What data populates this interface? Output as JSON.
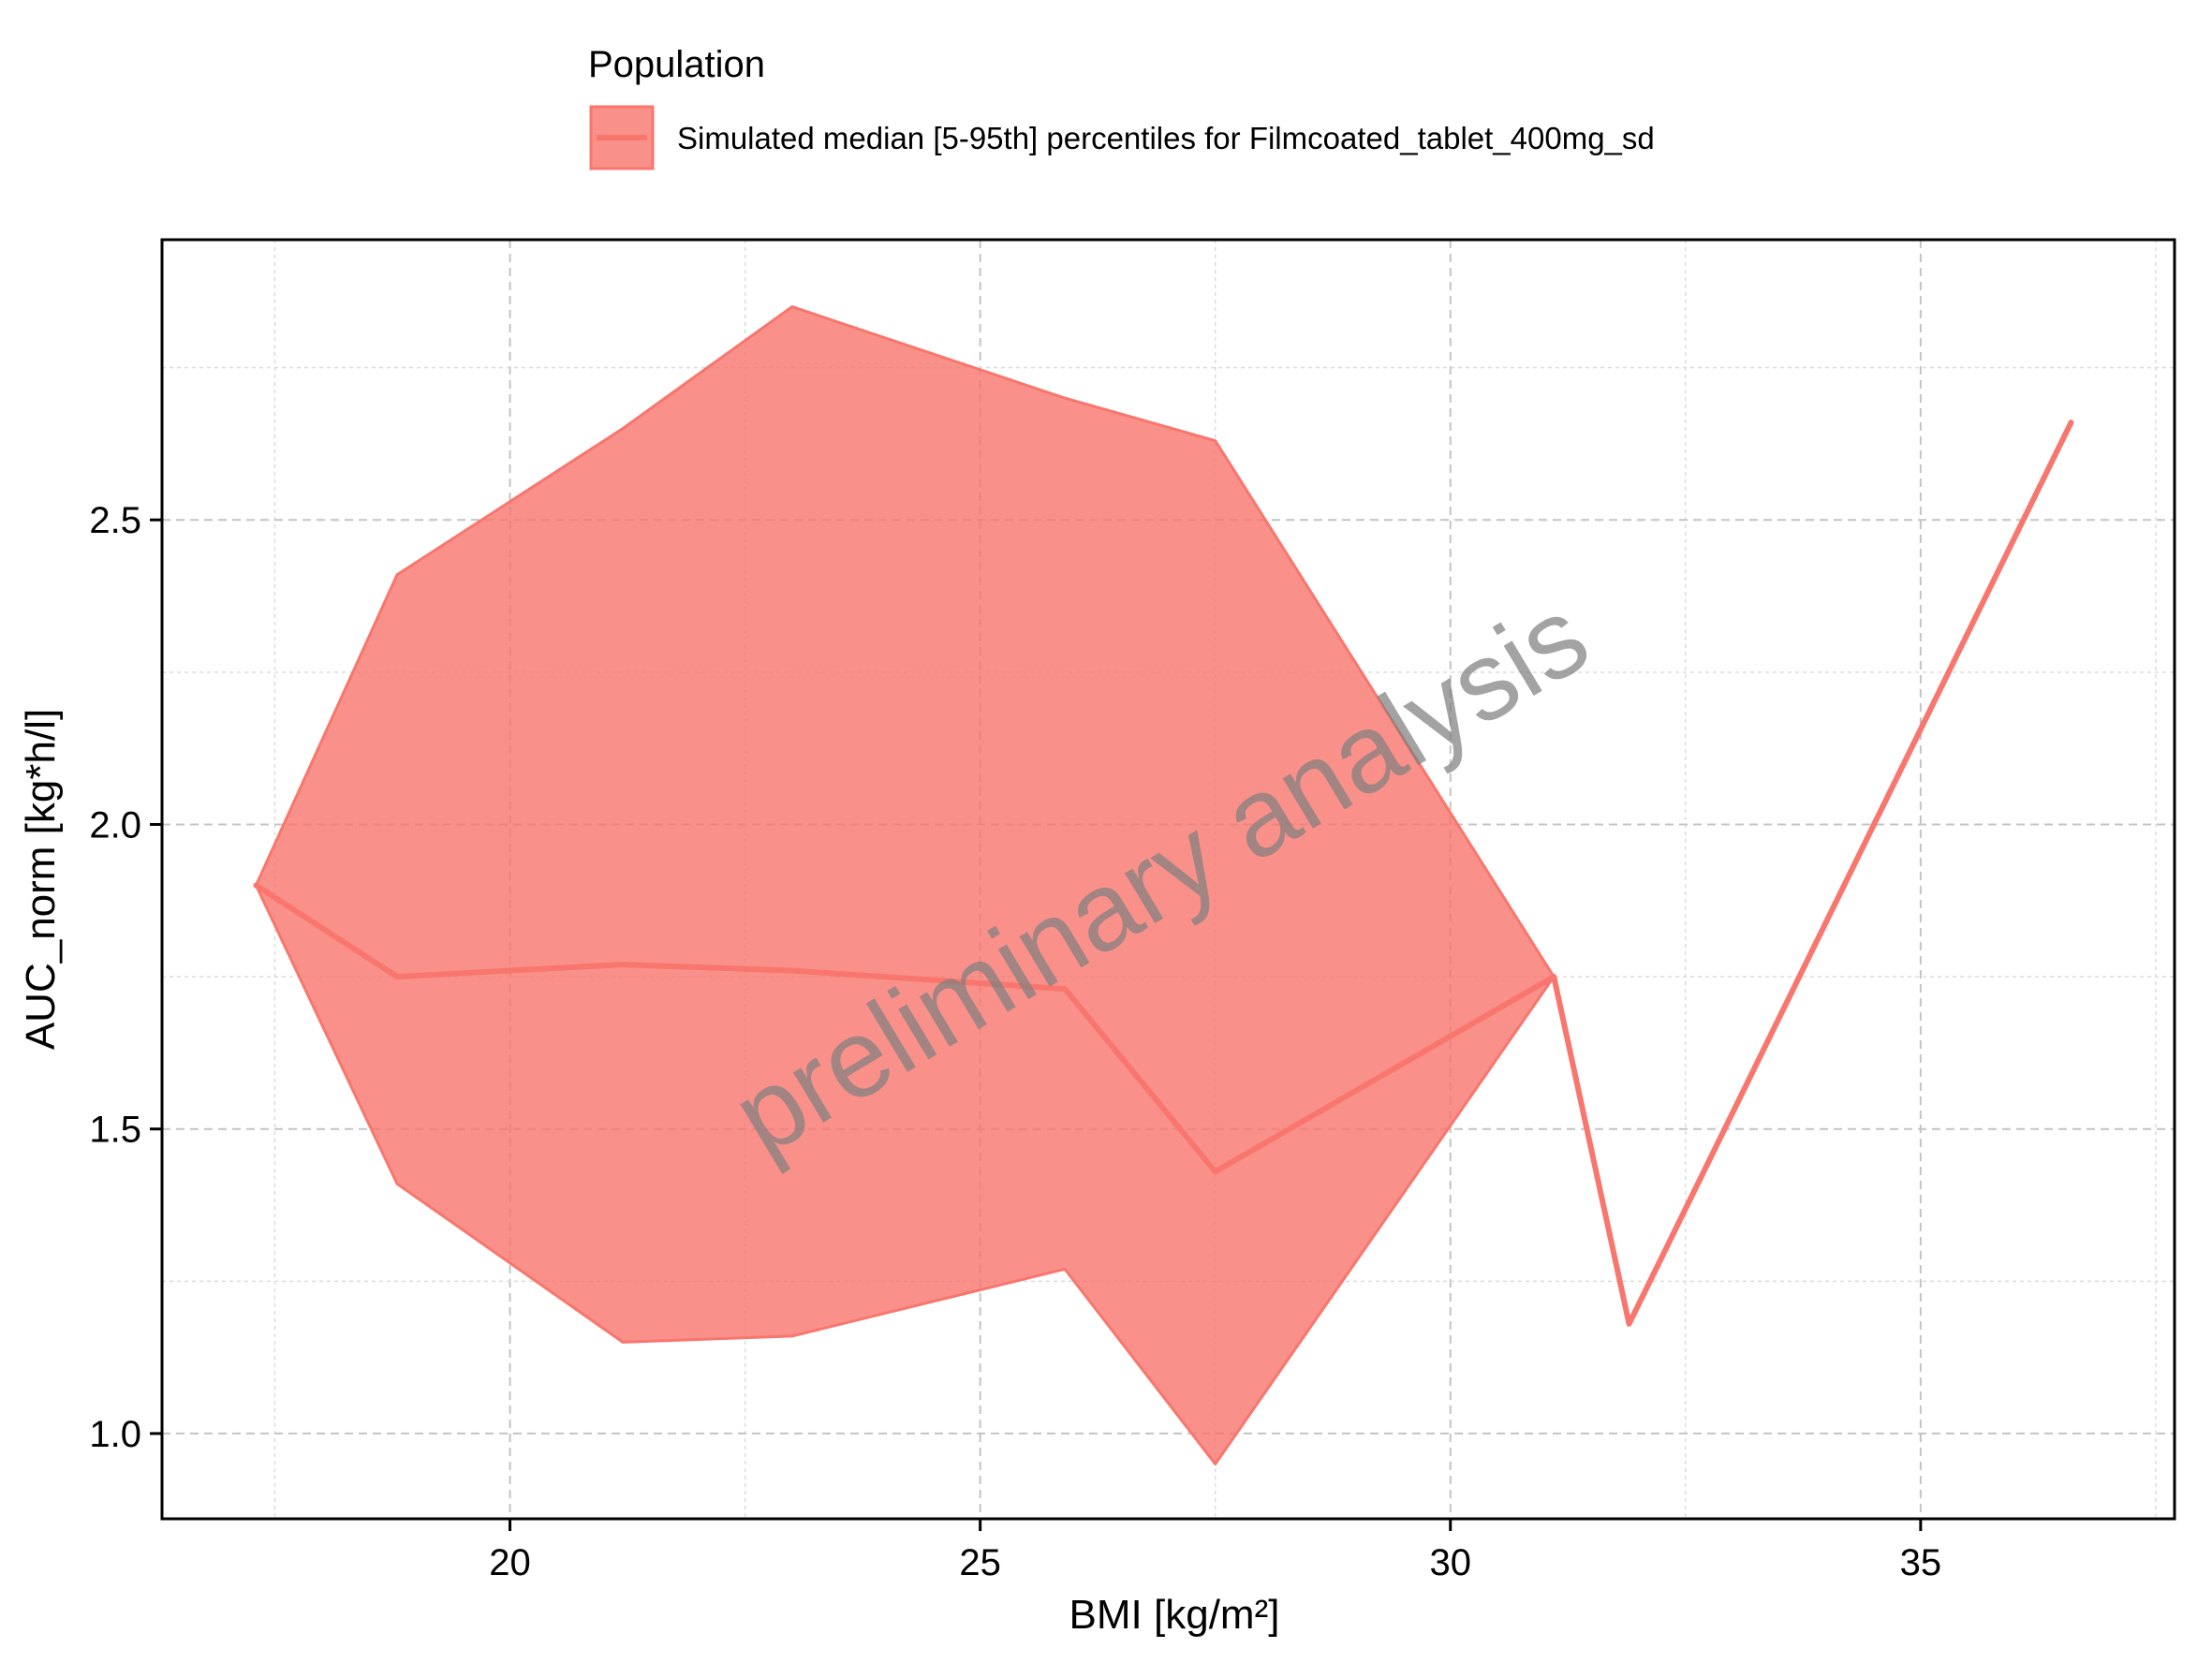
{
  "chart_data": {
    "type": "area",
    "legend": {
      "title": "Population",
      "placement": "top",
      "entries": [
        "Simulated median [5-95th] percentiles for Filmcoated_tablet_400mg_sd"
      ]
    },
    "xlabel": "BMI [kg/m²]",
    "ylabel": "AUC_norm [kg*h/l]",
    "xlim": [
      16.3,
      37.7
    ],
    "ylim": [
      0.86,
      2.96
    ],
    "xticks": [
      20,
      25,
      30,
      35
    ],
    "xtick_labels": [
      "20",
      "25",
      "30",
      "35"
    ],
    "yticks": [
      1.0,
      1.5,
      2.0,
      2.5
    ],
    "ytick_labels": [
      "1.0",
      "1.5",
      "2.0",
      "2.5"
    ],
    "grid": true,
    "watermark": "preliminary analysis",
    "series": [
      {
        "name": "Simulated median [5-95th] percentiles for Filmcoated_tablet_400mg_sd",
        "color": "#F8766D",
        "x": [
          17.3,
          18.8,
          21.2,
          23.0,
          25.9,
          27.5,
          31.1,
          31.9,
          36.6
        ],
        "median": [
          1.9,
          1.75,
          1.77,
          1.76,
          1.73,
          1.43,
          1.75,
          1.18,
          2.66
        ],
        "lower": [
          1.9,
          1.41,
          1.15,
          1.16,
          1.27,
          0.95,
          1.75,
          1.18,
          2.66
        ],
        "upper": [
          1.9,
          2.41,
          2.65,
          2.85,
          2.7,
          2.63,
          1.75,
          1.18,
          2.66
        ]
      }
    ]
  }
}
